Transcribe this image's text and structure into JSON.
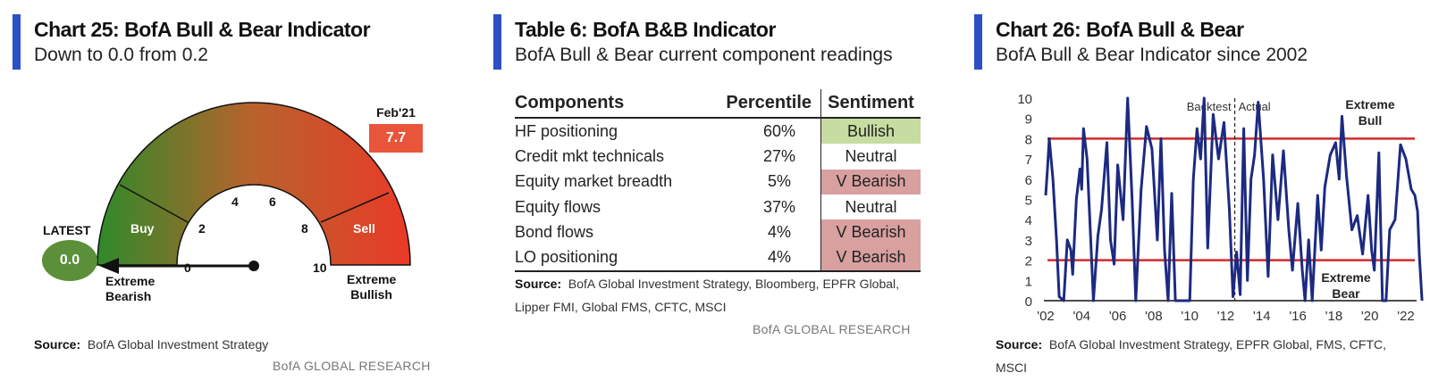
{
  "panel1": {
    "title": "Chart 25: BofA Bull & Bear Indicator",
    "subtitle": "Down to 0.0 from 0.2",
    "gauge": {
      "latest_label": "LATEST",
      "latest_value": "0.0",
      "latest_numeric": 0.0,
      "prev_label": "Feb'21",
      "prev_value": "7.7",
      "ticks": [
        "0",
        "2",
        "4",
        "6",
        "8",
        "10"
      ],
      "buy": "Buy",
      "sell": "Sell",
      "left_label": [
        "Extreme",
        "Bearish"
      ],
      "right_label": [
        "Extreme",
        "Bullish"
      ],
      "colors": {
        "green": "#2f8a2a",
        "red": "#ea3a28",
        "latest": "#5b8f3a",
        "prev": "#e8553a"
      }
    },
    "source_label": "Source:",
    "source": "BofA Global Investment Strategy",
    "research": "BofA GLOBAL RESEARCH"
  },
  "panel2": {
    "title": "Table 6: BofA B&B Indicator",
    "subtitle": "BofA Bull & Bear current component readings",
    "headers": [
      "Components",
      "Percentile",
      "Sentiment"
    ],
    "rows": [
      {
        "component": "HF positioning",
        "percentile": "60%",
        "sentiment": "Bullish",
        "color": "#c7dca0"
      },
      {
        "component": "Credit mkt technicals",
        "percentile": "27%",
        "sentiment": "Neutral",
        "color": "#ffffff"
      },
      {
        "component": "Equity market breadth",
        "percentile": "5%",
        "sentiment": "V Bearish",
        "color": "#d9a0a0"
      },
      {
        "component": "Equity flows",
        "percentile": "37%",
        "sentiment": "Neutral",
        "color": "#ffffff"
      },
      {
        "component": "Bond flows",
        "percentile": "4%",
        "sentiment": "V Bearish",
        "color": "#d9a0a0"
      },
      {
        "component": "LO positioning",
        "percentile": "4%",
        "sentiment": "V Bearish",
        "color": "#d9a0a0"
      }
    ],
    "source_label": "Source:",
    "source": "BofA Global Investment Strategy, Bloomberg, EPFR Global, Lipper FMI, Global FMS, CFTC, MSCI",
    "research": "BofA GLOBAL RESEARCH"
  },
  "panel3": {
    "title": "Chart 26: BofA Bull & Bear",
    "subtitle": "BofA Bull & Bear Indicator since 2002",
    "source_label": "Source:",
    "source": "BofA Global Investment Strategy, EPFR Global, FMS, CFTC, MSCI"
  },
  "chart_data": {
    "type": "line",
    "title": "BofA Bull & Bear Indicator since 2002",
    "ylim": [
      0,
      10
    ],
    "xlim": [
      2002,
      2022.9
    ],
    "yticks": [
      "0",
      "1",
      "2",
      "3",
      "4",
      "5",
      "6",
      "7",
      "8",
      "9",
      "10"
    ],
    "xticks": [
      {
        "v": 2002,
        "l": "'02"
      },
      {
        "v": 2004,
        "l": "'04"
      },
      {
        "v": 2006,
        "l": "'06"
      },
      {
        "v": 2008,
        "l": "'08"
      },
      {
        "v": 2010,
        "l": "'10"
      },
      {
        "v": 2012,
        "l": "'12"
      },
      {
        "v": 2014,
        "l": "'14"
      },
      {
        "v": 2016,
        "l": "'16"
      },
      {
        "v": 2018,
        "l": "'18"
      },
      {
        "v": 2020,
        "l": "'20"
      },
      {
        "v": 2022,
        "l": "'22"
      }
    ],
    "hlines": [
      {
        "y": 8,
        "label": "Extreme Bull"
      },
      {
        "y": 2,
        "label": "Extreme Bear"
      }
    ],
    "divider": {
      "x": 2012.5,
      "left_label": "Backtest",
      "right_label": "Actual"
    },
    "line_color": "#1c2a80",
    "hline_color": "#d42a2a",
    "series": [
      {
        "name": "BofA Bull & Bear Indicator",
        "points": [
          [
            2002.0,
            5.2
          ],
          [
            2002.1,
            6.5
          ],
          [
            2002.2,
            8
          ],
          [
            2002.4,
            6
          ],
          [
            2002.6,
            3
          ],
          [
            2002.75,
            0.2
          ],
          [
            2003.0,
            0
          ],
          [
            2003.2,
            3
          ],
          [
            2003.4,
            2.5
          ],
          [
            2003.5,
            1.3
          ],
          [
            2003.7,
            5
          ],
          [
            2003.9,
            6.5
          ],
          [
            2004.0,
            5.5
          ],
          [
            2004.1,
            8.5
          ],
          [
            2004.3,
            7
          ],
          [
            2004.5,
            3
          ],
          [
            2004.65,
            0
          ],
          [
            2004.9,
            3.2
          ],
          [
            2005.1,
            4.5
          ],
          [
            2005.4,
            7.8
          ],
          [
            2005.6,
            3
          ],
          [
            2005.8,
            1.8
          ],
          [
            2006.0,
            6.7
          ],
          [
            2006.3,
            4
          ],
          [
            2006.55,
            10
          ],
          [
            2006.8,
            5
          ],
          [
            2007.0,
            0
          ],
          [
            2007.3,
            5.5
          ],
          [
            2007.6,
            8.6
          ],
          [
            2007.9,
            7.5
          ],
          [
            2008.2,
            3
          ],
          [
            2008.4,
            8
          ],
          [
            2008.6,
            2.5
          ],
          [
            2008.8,
            0
          ],
          [
            2009.0,
            5.3
          ],
          [
            2009.2,
            0
          ],
          [
            2009.6,
            0
          ],
          [
            2010.0,
            0
          ],
          [
            2010.2,
            6
          ],
          [
            2010.4,
            8.5
          ],
          [
            2010.6,
            7
          ],
          [
            2010.8,
            10
          ],
          [
            2011.0,
            2.6
          ],
          [
            2011.3,
            9.2
          ],
          [
            2011.6,
            7
          ],
          [
            2011.9,
            8.8
          ],
          [
            2012.2,
            4.5
          ],
          [
            2012.4,
            0.2
          ],
          [
            2012.6,
            2.4
          ],
          [
            2012.8,
            0.3
          ],
          [
            2013.0,
            8.5
          ],
          [
            2013.2,
            1
          ],
          [
            2013.4,
            6
          ],
          [
            2013.6,
            7.2
          ],
          [
            2013.8,
            9.8
          ],
          [
            2014.1,
            6
          ],
          [
            2014.35,
            1.2
          ],
          [
            2014.6,
            7.2
          ],
          [
            2014.9,
            4
          ],
          [
            2015.2,
            7.4
          ],
          [
            2015.5,
            3.5
          ],
          [
            2015.7,
            1.5
          ],
          [
            2016.0,
            4.8
          ],
          [
            2016.25,
            1.5
          ],
          [
            2016.4,
            0
          ],
          [
            2016.6,
            3
          ],
          [
            2016.8,
            0
          ],
          [
            2017.1,
            5.2
          ],
          [
            2017.3,
            2.5
          ],
          [
            2017.5,
            5.6
          ],
          [
            2017.8,
            7.2
          ],
          [
            2018.1,
            7.8
          ],
          [
            2018.3,
            6
          ],
          [
            2018.45,
            9.1
          ],
          [
            2018.7,
            6.2
          ],
          [
            2019.0,
            3.5
          ],
          [
            2019.3,
            4.2
          ],
          [
            2019.6,
            2.3
          ],
          [
            2019.9,
            5.2
          ],
          [
            2020.1,
            2.5
          ],
          [
            2020.25,
            1.5
          ],
          [
            2020.5,
            7.3
          ],
          [
            2020.7,
            0
          ],
          [
            2020.9,
            0
          ],
          [
            2021.1,
            3.5
          ],
          [
            2021.4,
            4
          ],
          [
            2021.7,
            7.7
          ],
          [
            2022.0,
            7
          ],
          [
            2022.3,
            5.5
          ],
          [
            2022.5,
            5.2
          ],
          [
            2022.65,
            4.4
          ],
          [
            2022.75,
            2.2
          ],
          [
            2022.9,
            0
          ]
        ]
      }
    ]
  }
}
